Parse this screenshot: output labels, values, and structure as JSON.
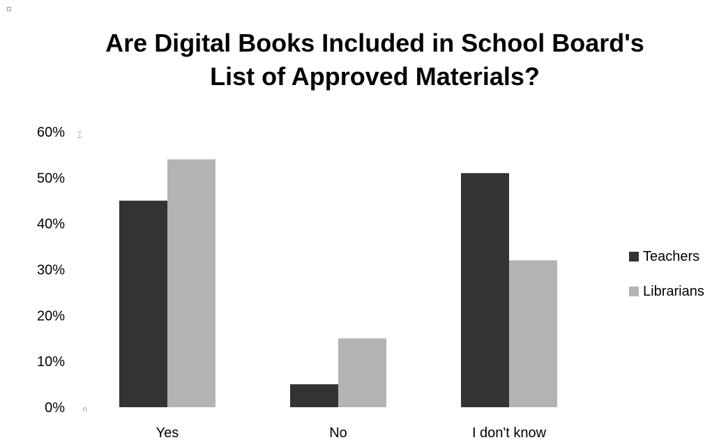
{
  "chart_data": {
    "type": "bar",
    "title": "Are Digital Books Included in School Board's\nList of Approved Materials?",
    "categories": [
      "Yes",
      "No",
      "I don't know"
    ],
    "series": [
      {
        "name": "Teachers",
        "values": [
          45,
          5,
          51
        ],
        "color": "#333333"
      },
      {
        "name": "Librarians",
        "values": [
          54,
          15,
          32
        ],
        "color": "#b3b3b3"
      }
    ],
    "ylim": [
      0,
      60
    ],
    "yticks": [
      "0%",
      "10%",
      "20%",
      "30%",
      "40%",
      "50%",
      "60%"
    ],
    "ytick_values": [
      0,
      10,
      20,
      30,
      40,
      50,
      60
    ],
    "xlabel": "",
    "ylabel": "",
    "grid": false,
    "legend_position": "right"
  }
}
